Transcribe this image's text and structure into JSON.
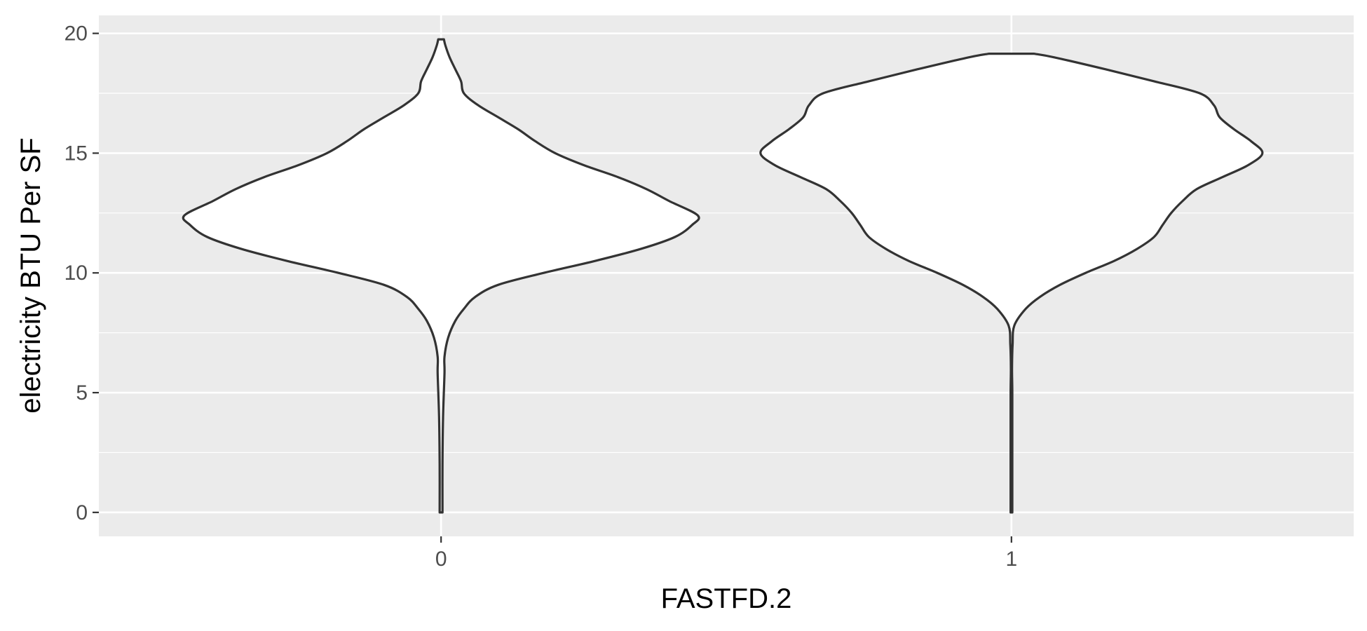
{
  "chart_data": {
    "type": "violin",
    "title": "",
    "xlabel": "FASTFD.2",
    "ylabel": "electricity BTU Per SF",
    "categories": [
      "0",
      "1"
    ],
    "ylim": [
      -1,
      20.75
    ],
    "xlim": [
      0.4,
      2.6
    ],
    "yticks": [
      0,
      5,
      10,
      15,
      20
    ],
    "ytick_labels": [
      "0",
      "5",
      "10",
      "15",
      "20"
    ],
    "grid": true,
    "legend": "none",
    "colors": {
      "panel": "#ebebeb",
      "grid": "#ffffff",
      "violin_fill": "#ffffff",
      "violin_outline": "#333333"
    },
    "violins": [
      {
        "category": "0",
        "range": [
          0,
          19.75
        ],
        "density_profile": [
          {
            "y": 0,
            "w": 0.005
          },
          {
            "y": 2,
            "w": 0.005
          },
          {
            "y": 4,
            "w": 0.007
          },
          {
            "y": 5.8,
            "w": 0.012
          },
          {
            "y": 6.5,
            "w": 0.012
          },
          {
            "y": 7.3,
            "w": 0.025
          },
          {
            "y": 8,
            "w": 0.05
          },
          {
            "y": 8.5,
            "w": 0.08
          },
          {
            "y": 9,
            "w": 0.12
          },
          {
            "y": 9.5,
            "w": 0.2
          },
          {
            "y": 10,
            "w": 0.36
          },
          {
            "y": 10.5,
            "w": 0.54
          },
          {
            "y": 11,
            "w": 0.7
          },
          {
            "y": 11.5,
            "w": 0.82
          },
          {
            "y": 12,
            "w": 0.88
          },
          {
            "y": 12.4,
            "w": 0.9
          },
          {
            "y": 13,
            "w": 0.8
          },
          {
            "y": 13.5,
            "w": 0.72
          },
          {
            "y": 14,
            "w": 0.62
          },
          {
            "y": 14.5,
            "w": 0.5
          },
          {
            "y": 15,
            "w": 0.4
          },
          {
            "y": 15.5,
            "w": 0.33
          },
          {
            "y": 16,
            "w": 0.27
          },
          {
            "y": 16.5,
            "w": 0.2
          },
          {
            "y": 17,
            "w": 0.13
          },
          {
            "y": 17.5,
            "w": 0.08
          },
          {
            "y": 18,
            "w": 0.07
          },
          {
            "y": 18.5,
            "w": 0.05
          },
          {
            "y": 19,
            "w": 0.03
          },
          {
            "y": 19.5,
            "w": 0.015
          },
          {
            "y": 19.75,
            "w": 0.01
          }
        ]
      },
      {
        "category": "1",
        "range": [
          0,
          19.15
        ],
        "density_profile": [
          {
            "y": 0,
            "w": 0.003
          },
          {
            "y": 3,
            "w": 0.003
          },
          {
            "y": 5,
            "w": 0.003
          },
          {
            "y": 6,
            "w": 0.002
          },
          {
            "y": 7,
            "w": 0.004
          },
          {
            "y": 7.8,
            "w": 0.01
          },
          {
            "y": 8.5,
            "w": 0.05
          },
          {
            "y": 9,
            "w": 0.1
          },
          {
            "y": 9.5,
            "w": 0.17
          },
          {
            "y": 10,
            "w": 0.26
          },
          {
            "y": 10.5,
            "w": 0.36
          },
          {
            "y": 11,
            "w": 0.44
          },
          {
            "y": 11.5,
            "w": 0.5
          },
          {
            "y": 12,
            "w": 0.53
          },
          {
            "y": 12.5,
            "w": 0.56
          },
          {
            "y": 13,
            "w": 0.6
          },
          {
            "y": 13.5,
            "w": 0.65
          },
          {
            "y": 14,
            "w": 0.74
          },
          {
            "y": 14.5,
            "w": 0.83
          },
          {
            "y": 15,
            "w": 0.88
          },
          {
            "y": 15.5,
            "w": 0.84
          },
          {
            "y": 16,
            "w": 0.78
          },
          {
            "y": 16.5,
            "w": 0.73
          },
          {
            "y": 17,
            "w": 0.71
          },
          {
            "y": 17.5,
            "w": 0.66
          },
          {
            "y": 18,
            "w": 0.5
          },
          {
            "y": 18.5,
            "w": 0.33
          },
          {
            "y": 19,
            "w": 0.15
          },
          {
            "y": 19.15,
            "w": 0.08
          }
        ]
      }
    ]
  }
}
